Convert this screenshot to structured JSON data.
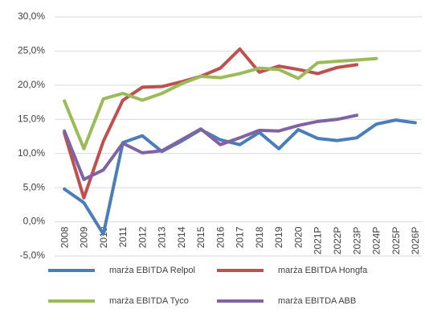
{
  "chart_data": {
    "type": "line",
    "categories": [
      "2008",
      "2009",
      "2010",
      "2011",
      "2012",
      "2013",
      "2014",
      "2015",
      "2016",
      "2017",
      "2018",
      "2019",
      "2020",
      "2021P",
      "2022P",
      "2023P",
      "2024P",
      "2025P",
      "2026P"
    ],
    "ylim": [
      -5,
      30
    ],
    "yticks": [
      {
        "value": -5,
        "label": "-5,0%"
      },
      {
        "value": 0,
        "label": "0,0%"
      },
      {
        "value": 5,
        "label": "5,0%"
      },
      {
        "value": 10,
        "label": "10,0%"
      },
      {
        "value": 15,
        "label": "15,0%"
      },
      {
        "value": 20,
        "label": "20,0%"
      },
      {
        "value": 25,
        "label": "25,0%"
      },
      {
        "value": 30,
        "label": "30,0%"
      }
    ],
    "grid": true,
    "series": [
      {
        "name": "marża EBITDA Relpol",
        "color": "#4a7ebb",
        "values": [
          4.8,
          2.8,
          -1.8,
          11.6,
          12.6,
          10.3,
          11.8,
          13.5,
          12.0,
          11.3,
          13.1,
          10.7,
          13.5,
          12.2,
          11.9,
          12.3,
          14.3,
          14.9,
          14.5
        ]
      },
      {
        "name": "marża EBITDA Hongfa",
        "color": "#c0504d",
        "values": [
          13.0,
          3.5,
          11.8,
          17.8,
          19.7,
          19.8,
          20.5,
          21.3,
          22.5,
          25.3,
          21.9,
          22.8,
          22.3,
          21.7,
          22.6,
          23.0,
          null,
          null,
          null
        ]
      },
      {
        "name": "marża EBITDA Tyco",
        "color": "#9bbb59",
        "values": [
          17.7,
          10.7,
          18.0,
          18.8,
          17.8,
          18.8,
          20.2,
          21.3,
          21.1,
          21.7,
          22.5,
          22.3,
          21.0,
          23.3,
          23.5,
          23.7,
          23.9,
          null,
          null
        ]
      },
      {
        "name": "marża EBITDA ABB",
        "color": "#8064a2",
        "values": [
          13.3,
          6.2,
          7.6,
          11.5,
          10.1,
          10.4,
          12.0,
          13.6,
          11.3,
          12.3,
          13.4,
          13.3,
          14.1,
          14.7,
          15.0,
          15.6,
          null,
          null,
          null
        ]
      }
    ]
  }
}
